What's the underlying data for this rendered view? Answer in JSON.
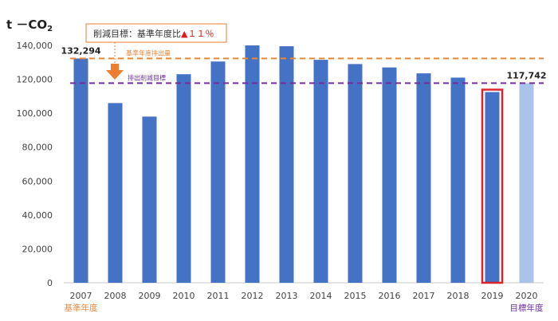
{
  "chart_data": {
    "type": "bar",
    "unit_label": "t －CO",
    "unit_subscript": "2",
    "categories": [
      "2007",
      "2008",
      "2009",
      "2010",
      "2011",
      "2012",
      "2013",
      "2014",
      "2015",
      "2016",
      "2017",
      "2018",
      "2019",
      "2020"
    ],
    "values": [
      132294,
      106000,
      98000,
      123000,
      130500,
      140000,
      139500,
      131500,
      129000,
      127000,
      123500,
      121000,
      112500,
      117742
    ],
    "ylim": [
      0,
      140000
    ],
    "yticks": [
      0,
      20000,
      40000,
      60000,
      80000,
      100000,
      120000,
      140000
    ],
    "ytick_labels": [
      "0",
      "20,000",
      "40,000",
      "60,000",
      "80,000",
      "100,000",
      "120,000",
      "140,000"
    ],
    "grid": false,
    "highlighted_category": "2019",
    "target_category": "2020",
    "data_labels": [
      {
        "category": "2007",
        "text": "132,294"
      },
      {
        "category": "2020",
        "text": "117,742"
      }
    ],
    "reference_lines": [
      {
        "name": "基準年度排出量",
        "value": 132294,
        "color": "#E8873A"
      },
      {
        "name": "排出削減目標",
        "value": 117742,
        "color": "#7030A0"
      }
    ],
    "annotation": {
      "prefix": "削減目標：基準年度比",
      "triangle": "▲",
      "amount": "１１％"
    },
    "sub_labels": [
      {
        "category": "2007",
        "text": "基準年度",
        "color": "#E8873A"
      },
      {
        "category": "2020",
        "text": "目標年度",
        "color": "#7030A0"
      }
    ]
  },
  "colors": {
    "bar": "#4472C4",
    "bar_target": "#A9C4E8",
    "highlight_frame": "#D9262C",
    "arrow": "#ED7D31",
    "annotation_border": "#ED7D31",
    "triangle": "#E01B1B"
  }
}
